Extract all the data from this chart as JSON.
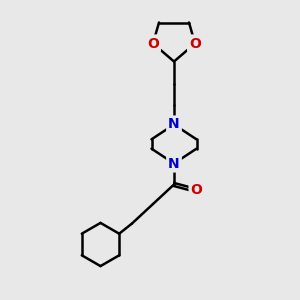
{
  "background_color": "#e8e8e8",
  "line_color": "#000000",
  "N_color": "#0000cc",
  "O_color": "#cc0000",
  "bond_width": 1.8,
  "font_size_atom": 10,
  "fig_size": [
    3.0,
    3.0
  ],
  "dpi": 100,
  "xlim": [
    0,
    10
  ],
  "ylim": [
    0,
    10
  ]
}
